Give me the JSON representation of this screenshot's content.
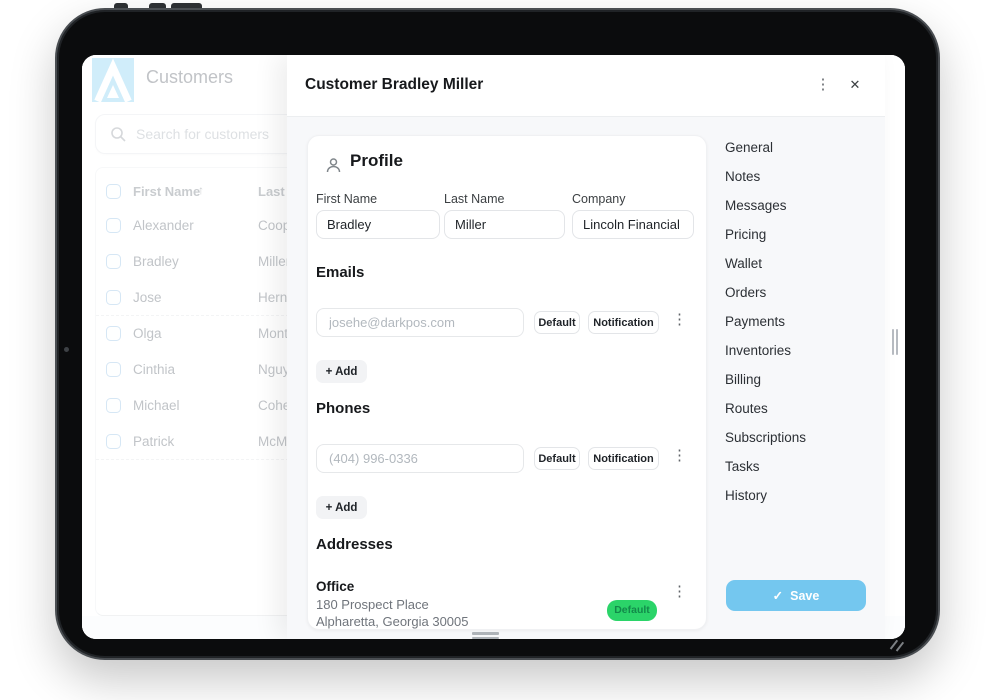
{
  "colors": {
    "save_button": "#74c7ef",
    "default_badge_bg": "#2bd469",
    "logo_blue": "#9ed9f4"
  },
  "icons": {
    "menu": "⋮",
    "close": "✕",
    "sort_arrow": "↑",
    "plus": "+",
    "check": "✓"
  },
  "sidebar": {
    "app_title": "Customers",
    "search_placeholder": "Search for customers",
    "table": {
      "header": {
        "first_name": "First Name",
        "last_name": "Last N"
      },
      "rows": [
        {
          "first_name": "Alexander",
          "last_name": "Coop"
        },
        {
          "first_name": "Bradley",
          "last_name": "Miller"
        },
        {
          "first_name": "Jose",
          "last_name": "Herna"
        },
        {
          "first_name": "Olga",
          "last_name": "Mont"
        },
        {
          "first_name": "Cinthia",
          "last_name": "Nguy"
        },
        {
          "first_name": "Michael",
          "last_name": "Cohe"
        },
        {
          "first_name": "Patrick",
          "last_name": "McMi"
        }
      ]
    }
  },
  "modal": {
    "title": "Customer Bradley Miller",
    "profile": {
      "heading": "Profile",
      "first_name_label": "First Name",
      "first_name_value": "Bradley",
      "last_name_label": "Last Name",
      "last_name_value": "Miller",
      "company_label": "Company",
      "company_value": "Lincoln Financial"
    },
    "emails": {
      "heading": "Emails",
      "value": "josehe@darkpos.com",
      "default_label": "Default",
      "notification_label": "Notification",
      "add_label": "Add"
    },
    "phones": {
      "heading": "Phones",
      "value": "(404) 996-0336",
      "default_label": "Default",
      "notification_label": "Notification",
      "add_label": "Add"
    },
    "addresses": {
      "heading": "Addresses",
      "name": "Office",
      "line1": "180 Prospect Place",
      "line2": "Alpharetta, Georgia 30005",
      "badge": "Default"
    },
    "nav": {
      "items": [
        "General",
        "Notes",
        "Messages",
        "Pricing",
        "Wallet",
        "Orders",
        "Payments",
        "Inventories",
        "Billing",
        "Routes",
        "Subscriptions",
        "Tasks",
        "History"
      ]
    },
    "save": {
      "label": "Save"
    }
  }
}
